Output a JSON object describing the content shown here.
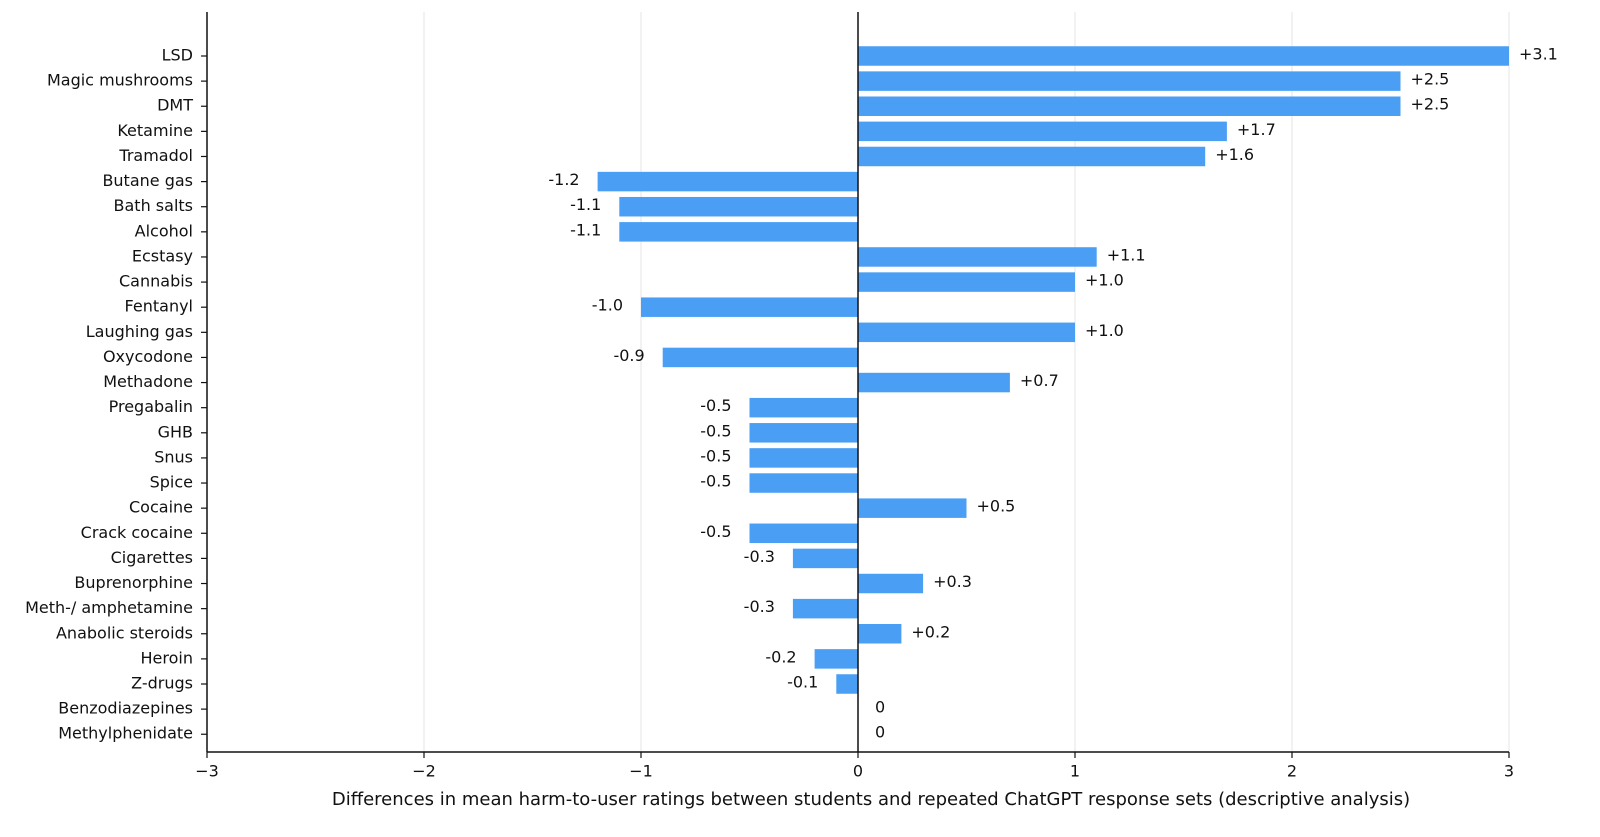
{
  "chart_data": {
    "type": "barh",
    "xlabel": "Differences in mean harm-to-user ratings between students and repeated ChatGPT response sets (descriptive analysis)",
    "categories": [
      "LSD",
      "Magic mushrooms",
      "DMT",
      "Ketamine",
      "Tramadol",
      "Butane gas",
      "Bath salts",
      "Alcohol",
      "Ecstasy",
      "Cannabis",
      "Fentanyl",
      "Laughing gas",
      "Oxycodone",
      "Methadone",
      "Pregabalin",
      "GHB",
      "Snus",
      "Spice",
      "Cocaine",
      "Crack cocaine",
      "Cigarettes",
      "Buprenorphine",
      "Meth-/ amphetamine",
      "Anabolic steroids",
      "Heroin",
      "Z-drugs",
      "Benzodiazepines",
      "Methylphenidate"
    ],
    "values": [
      3.1,
      2.5,
      2.5,
      1.7,
      1.6,
      -1.2,
      -1.1,
      -1.1,
      1.1,
      1.0,
      -1.0,
      1.0,
      -0.9,
      0.7,
      -0.5,
      -0.5,
      -0.5,
      -0.5,
      0.5,
      -0.5,
      -0.3,
      0.3,
      -0.3,
      0.2,
      -0.2,
      -0.1,
      0,
      0
    ],
    "value_labels": [
      "+3.1",
      "+2.5",
      "+2.5",
      "+1.7",
      "+1.6",
      "-1.2",
      "-1.1",
      "-1.1",
      "+1.1",
      "+1.0",
      "-1.0",
      "+1.0",
      "-0.9",
      "+0.7",
      "-0.5",
      "-0.5",
      "-0.5",
      "-0.5",
      "+0.5",
      "-0.5",
      "-0.3",
      "+0.3",
      "-0.3",
      "+0.2",
      "-0.2",
      "-0.1",
      "0",
      "0"
    ],
    "color": "#4a9ff5",
    "xlim": [
      -3,
      3
    ],
    "xticks": [
      {
        "value": -3,
        "label": "−3"
      },
      {
        "value": -2,
        "label": "−2"
      },
      {
        "value": -1,
        "label": "−1"
      },
      0,
      1,
      2,
      3
    ],
    "grid": true
  }
}
